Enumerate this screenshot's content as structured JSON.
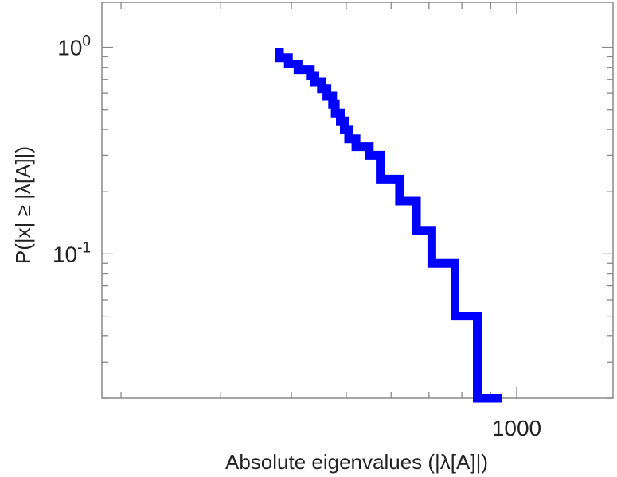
{
  "chart_data": {
    "type": "line",
    "title": "",
    "xlabel": "Absolute eigenvalues (|λ[A]|)",
    "ylabel": "P(|x| ≥ |λ[A]|)",
    "xscale": "log",
    "yscale": "log",
    "xlim": [
      185,
      1480
    ],
    "ylim": [
      0.02,
      1.65
    ],
    "grid": false,
    "legend": "none",
    "x_ticks": [
      {
        "value": 1000,
        "label": "1000"
      }
    ],
    "y_ticks": [
      {
        "value": 1,
        "base": "10",
        "exp": "0"
      },
      {
        "value": 0.1,
        "base": "10",
        "exp": "-1"
      }
    ],
    "series": [
      {
        "color": "#0000ff",
        "step": true,
        "x": [
          381,
          395,
          411,
          432,
          440,
          452,
          462,
          473,
          478,
          488,
          496,
          505,
          520,
          549,
          574,
          621,
          665,
          708,
          778,
          852,
          941
        ],
        "y": [
          0.94,
          0.89,
          0.83,
          0.78,
          0.73,
          0.68,
          0.63,
          0.58,
          0.53,
          0.48,
          0.44,
          0.4,
          0.36,
          0.33,
          0.3,
          0.23,
          0.18,
          0.13,
          0.09,
          0.05,
          0.02
        ]
      }
    ]
  }
}
